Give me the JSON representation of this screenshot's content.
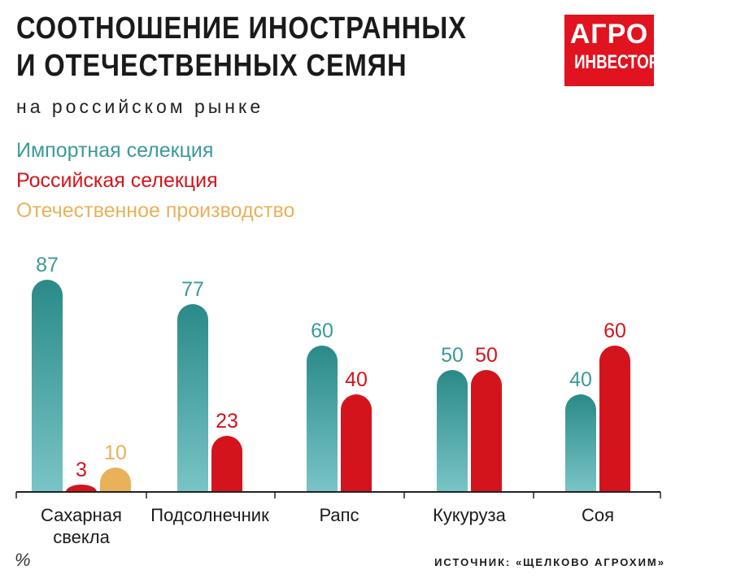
{
  "title_line1": "СООТНОШЕНИЕ ИНОСТРАННЫХ",
  "title_line2": "И ОТЕЧЕСТВЕННЫХ СЕМЯН",
  "subtitle": "на российском рынке",
  "logo": {
    "line1": "АГРО",
    "line2": "ИНВЕСТОР"
  },
  "unit": "%",
  "source": "ИСТОЧНИК: «ЩЕЛКОВО АГРОХИМ»",
  "colors": {
    "import": "#3a9a9a",
    "russian": "#d4141c",
    "domestic": "#e8b15a",
    "axis": "#222222"
  },
  "chart_data": {
    "type": "bar",
    "title": "Соотношение иностранных и отечественных семян на российском рынке",
    "ylabel": "%",
    "ylim": [
      0,
      100
    ],
    "categories": [
      "Сахарная\nсвекла",
      "Подсолнечник",
      "Рапс",
      "Кукуруза",
      "Соя"
    ],
    "series": [
      {
        "name": "Импортная селекция",
        "color": "#3a9a9a",
        "values": [
          87,
          77,
          60,
          50,
          40
        ]
      },
      {
        "name": "Российская селекция",
        "color": "#d4141c",
        "values": [
          3,
          23,
          40,
          50,
          60
        ]
      },
      {
        "name": "Отечественное производство",
        "color": "#e8b15a",
        "values": [
          10,
          null,
          null,
          null,
          null
        ]
      }
    ],
    "legend": "top-left",
    "grid": false
  }
}
